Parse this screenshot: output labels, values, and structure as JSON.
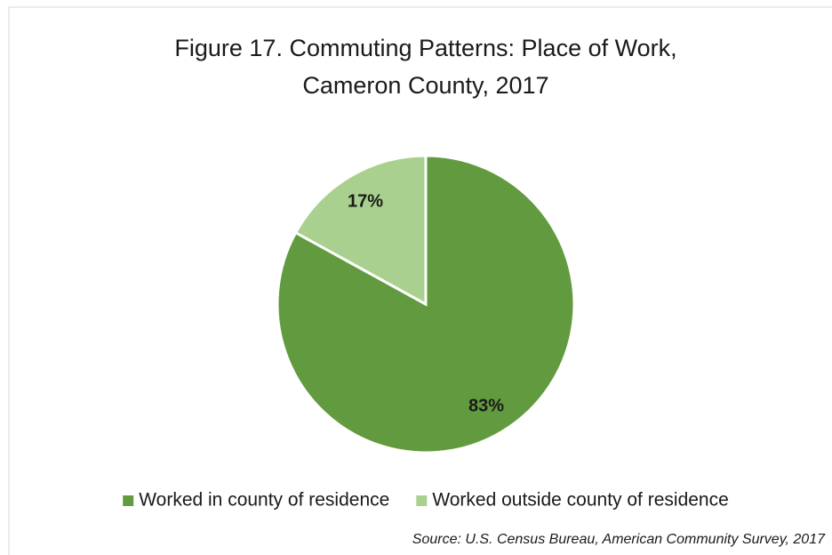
{
  "chart_data": {
    "type": "pie",
    "title": [
      "Figure 17. Commuting Patterns: Place of Work,",
      "Cameron County, 2017"
    ],
    "categories": [
      "Worked in county of residence",
      "Worked outside county of residence"
    ],
    "values": [
      83,
      17
    ],
    "value_labels": [
      "83%",
      "17%"
    ],
    "colors": [
      "#629b3f",
      "#a9d08e"
    ],
    "legend": "bottom",
    "source": "Source: U.S. Census Bureau, American Community Survey, 2017"
  }
}
